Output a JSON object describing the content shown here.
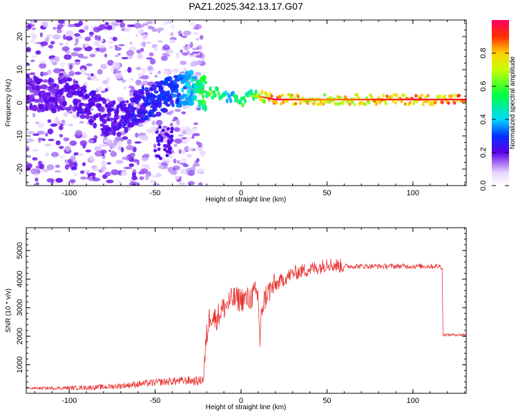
{
  "title": "PAZ1.2025.342.13.17.G07",
  "chart_data": [
    {
      "type": "heatmap",
      "xlabel": "Height of straight line (km)",
      "ylabel": "Frequency (Hz)",
      "xlim": [
        -125,
        131
      ],
      "ylim": [
        -25,
        25
      ],
      "xticks": [
        -100,
        -50,
        0,
        50,
        100
      ],
      "yticks": [
        -20,
        -10,
        0,
        10,
        20
      ],
      "colorbar": {
        "label": "Normalized spectral amplitude",
        "range": [
          0,
          1
        ],
        "ticks": [
          "0.0",
          "0.2",
          "0.4",
          "0.6",
          "0.8"
        ],
        "tick_values": [
          0,
          0.2,
          0.4,
          0.6,
          0.8
        ]
      },
      "main_ridge": {
        "x": [
          -125,
          -110,
          -100,
          -90,
          -80,
          -70,
          -60,
          -50,
          -40,
          -30,
          -25,
          -20,
          -15,
          -10,
          -5,
          0,
          5,
          10,
          20,
          30,
          50,
          80,
          100,
          131
        ],
        "frequency": [
          3,
          2,
          3,
          0,
          -4,
          -5,
          -1,
          1,
          3,
          5,
          4,
          3,
          3,
          2,
          2,
          0,
          2,
          2,
          1,
          1,
          1,
          1,
          1,
          1
        ],
        "amplitude": [
          0.2,
          0.2,
          0.2,
          0.22,
          0.22,
          0.22,
          0.25,
          0.28,
          0.3,
          0.4,
          0.5,
          0.6,
          0.6,
          0.5,
          0.4,
          0.6,
          0.5,
          0.7,
          0.9,
          0.8,
          0.75,
          0.8,
          0.85,
          0.85
        ]
      }
    },
    {
      "type": "line",
      "xlabel": "Height of straight line (km)",
      "ylabel": "SNR (10 * v/v)",
      "xlim": [
        -125,
        131
      ],
      "ylim": [
        0,
        5800
      ],
      "xticks": [
        -100,
        -50,
        0,
        50,
        100
      ],
      "yticks": [
        1000,
        2000,
        3000,
        4000,
        5000
      ],
      "color": "#e83030",
      "series": [
        {
          "name": "SNR",
          "x": [
            -125,
            -110,
            -100,
            -90,
            -80,
            -70,
            -60,
            -50,
            -40,
            -30,
            -25,
            -22,
            -20,
            -18,
            -15,
            -10,
            -5,
            0,
            5,
            8,
            10,
            11,
            12,
            15,
            20,
            25,
            30,
            40,
            48,
            50,
            52,
            60,
            70,
            80,
            90,
            100,
            110,
            116,
            117,
            117.5,
            120,
            131
          ],
          "y": [
            180,
            180,
            190,
            200,
            220,
            260,
            320,
            380,
            420,
            450,
            420,
            500,
            2000,
            2800,
            2600,
            3000,
            3300,
            3300,
            3300,
            3500,
            3400,
            1500,
            3000,
            3500,
            3800,
            4000,
            4200,
            4350,
            4450,
            4600,
            4500,
            4450,
            4450,
            4450,
            4450,
            4450,
            4450,
            4450,
            4400,
            2050,
            2050,
            2050
          ]
        }
      ]
    }
  ]
}
